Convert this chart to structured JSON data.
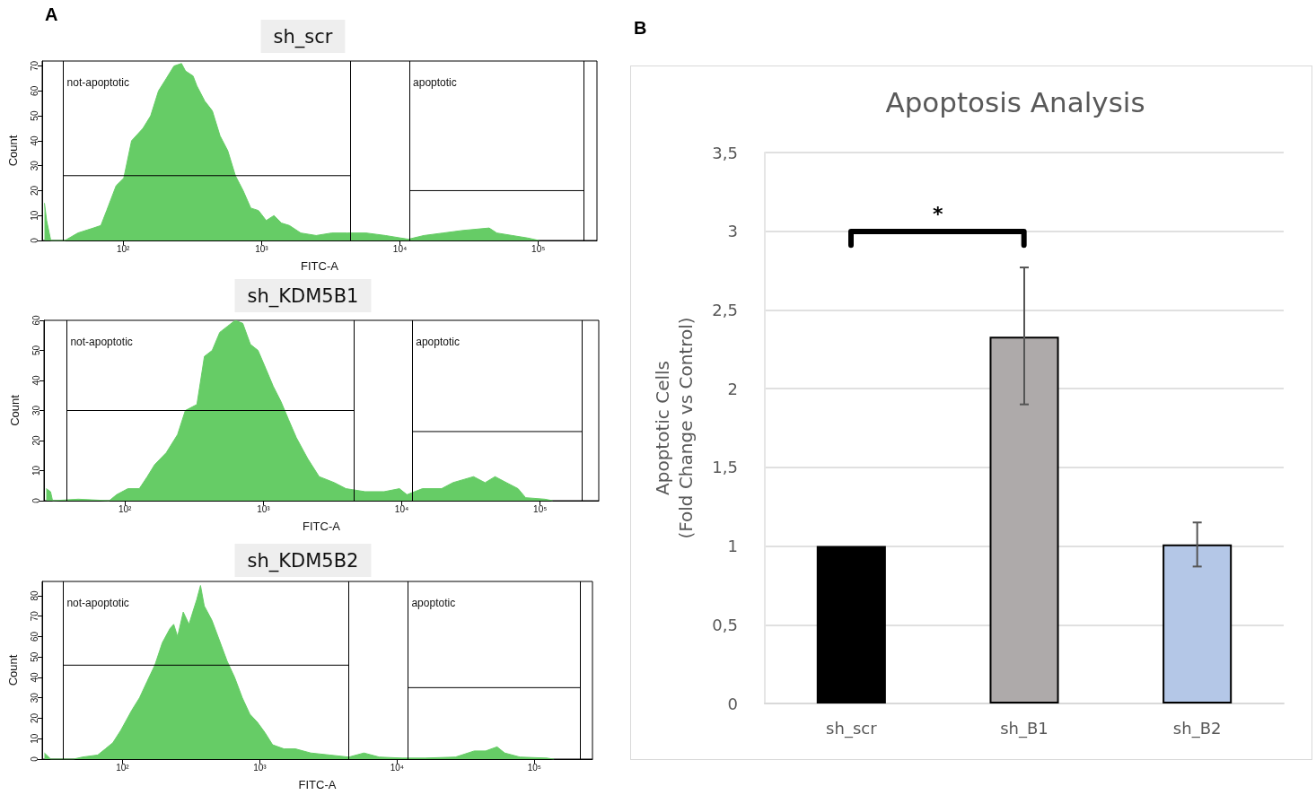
{
  "chart_data": [
    {
      "type": "area",
      "title": "sh_scr",
      "xlabel": "FITC-A",
      "ylabel": "Count",
      "log": "x",
      "marker": "none",
      "annotations": [
        "A"
      ],
      "xlim": [
        26,
        265000
      ],
      "xticks": [
        {
          "value": 100,
          "label": "10²"
        },
        {
          "value": 1000,
          "label": "10³"
        },
        {
          "value": 10000,
          "label": "10⁴"
        },
        {
          "value": 100000,
          "label": "10⁵"
        }
      ],
      "ylim": [
        0,
        72
      ],
      "yticks": [
        0,
        10,
        20,
        30,
        40,
        50,
        60,
        70
      ],
      "ref_lines": [
        {
          "axis": "x",
          "value": 37,
          "label": "not-apoptotic"
        },
        {
          "axis": "x",
          "value": 4400
        },
        {
          "axis": "x",
          "value": 11700,
          "label": "apoptotic"
        },
        {
          "axis": "x",
          "value": 214000
        }
      ],
      "series": [
        {
          "color": "#66cc66",
          "x": [
            27,
            28,
            30,
            38,
            47,
            61,
            69,
            76,
            89,
            101,
            115,
            139,
            158,
            180,
            205,
            233,
            264,
            282,
            320,
            341,
            388,
            441,
            501,
            570,
            647,
            736,
            836,
            951,
            1080,
            1230,
            1390,
            1590,
            1920,
            2480,
            3210,
            4140,
            5700,
            7840,
            10100,
            11500,
            14900,
            20500,
            28200,
            44100,
            50100,
            64700,
            83600,
            101000
          ],
          "values": [
            15,
            8,
            0,
            0,
            3,
            5,
            6,
            12,
            22,
            25,
            40,
            45,
            50,
            60,
            65,
            70,
            71,
            68,
            66,
            62,
            56,
            52,
            42,
            36,
            26,
            20,
            13,
            12,
            8,
            10,
            7,
            6,
            3,
            2,
            3,
            3,
            3,
            2,
            1,
            0.5,
            2,
            3,
            4,
            5,
            3,
            2,
            1,
            0
          ]
        },
        {
          "type": "line",
          "color": "#000000",
          "x": [
            37,
            4400
          ],
          "values": [
            26,
            26
          ]
        },
        {
          "type": "line",
          "color": "#000000",
          "x": [
            11700,
            214000
          ],
          "values": [
            20,
            20
          ]
        }
      ]
    },
    {
      "type": "area",
      "title": "sh_KDM5B1",
      "xlabel": "FITC-A",
      "ylabel": "Count",
      "log": "x",
      "marker": "none",
      "xlim": [
        26,
        265000
      ],
      "xticks": [
        {
          "value": 100,
          "label": "10²"
        },
        {
          "value": 1000,
          "label": "10³"
        },
        {
          "value": 10000,
          "label": "10⁴"
        },
        {
          "value": 100000,
          "label": "10⁵"
        }
      ],
      "ylim": [
        0,
        60
      ],
      "yticks": [
        0,
        10,
        20,
        30,
        40,
        50,
        60
      ],
      "ref_lines": [
        {
          "axis": "x",
          "value": 38,
          "label": "not-apoptotic"
        },
        {
          "axis": "x",
          "value": 4500
        },
        {
          "axis": "x",
          "value": 11900,
          "label": "apoptotic"
        },
        {
          "axis": "x",
          "value": 200000
        }
      ],
      "series": [
        {
          "color": "#66cc66",
          "x": [
            27,
            29,
            30,
            46,
            77,
            87,
            105,
            127,
            145,
            164,
            199,
            240,
            273,
            331,
            375,
            427,
            484,
            550,
            625,
            710,
            806,
            915,
            1040,
            1180,
            1340,
            1520,
            1730,
            2090,
            2530,
            3260,
            3950,
            5430,
            7460,
            9620,
            10900,
            14100,
            19400,
            23400,
            33000,
            40000,
            47200,
            57100,
            69200,
            78500,
            108000,
            123000
          ],
          "values": [
            4,
            3,
            0,
            0.5,
            0,
            2,
            4,
            4,
            8,
            12,
            16,
            22,
            30,
            32,
            48,
            50,
            56,
            58,
            60,
            59,
            52,
            50,
            44,
            38,
            33,
            27,
            21,
            14,
            8,
            6,
            4,
            3,
            3,
            4,
            2,
            4,
            4,
            6,
            8,
            6,
            8,
            6,
            4,
            1,
            0.5,
            0
          ]
        },
        {
          "type": "line",
          "color": "#000000",
          "x": [
            38,
            4500
          ],
          "values": [
            30,
            30
          ]
        },
        {
          "type": "line",
          "color": "#000000",
          "x": [
            11900,
            200000
          ],
          "values": [
            23,
            23
          ]
        }
      ]
    },
    {
      "type": "area",
      "title": "sh_KDM5B2",
      "xlabel": "FITC-A",
      "ylabel": "Count",
      "log": "x",
      "marker": "none",
      "xlim": [
        26,
        265000
      ],
      "xticks": [
        {
          "value": 100,
          "label": "10²"
        },
        {
          "value": 1000,
          "label": "10³"
        },
        {
          "value": 10000,
          "label": "10⁴"
        },
        {
          "value": 100000,
          "label": "10⁵"
        }
      ],
      "ylim": [
        0,
        87
      ],
      "yticks": [
        0,
        10,
        20,
        30,
        40,
        50,
        60,
        70,
        80
      ],
      "ref_lines": [
        {
          "axis": "x",
          "value": 37,
          "label": "not-apoptotic"
        },
        {
          "axis": "x",
          "value": 4450
        },
        {
          "axis": "x",
          "value": 12000,
          "label": "apoptotic"
        },
        {
          "axis": "x",
          "value": 215000
        }
      ],
      "series": [
        {
          "color": "#66cc66",
          "x": [
            27,
            28,
            30,
            44,
            51,
            66,
            75,
            85,
            97,
            117,
            133,
            151,
            172,
            195,
            222,
            236,
            252,
            277,
            305,
            325,
            347,
            370,
            394,
            448,
            509,
            578,
            656,
            746,
            847,
            962,
            1090,
            1240,
            1500,
            1820,
            2350,
            3230,
            4450,
            5740,
            7410,
            10900,
            15900,
            26600,
            36500,
            44200,
            53500,
            60800,
            78500,
            123000,
            139000
          ],
          "values": [
            3,
            2,
            0,
            0,
            1,
            2,
            5,
            8,
            14,
            24,
            30,
            38,
            46,
            57,
            64,
            66,
            60,
            72,
            66,
            72,
            78,
            85,
            75,
            68,
            58,
            48,
            40,
            30,
            22,
            18,
            13,
            7,
            5,
            5,
            3,
            2,
            1,
            3,
            1,
            0.5,
            0.5,
            1,
            4,
            4,
            6,
            3,
            1,
            0.5,
            0
          ]
        },
        {
          "type": "line",
          "color": "#000000",
          "x": [
            37,
            4450
          ],
          "values": [
            46,
            46
          ]
        },
        {
          "type": "line",
          "color": "#000000",
          "x": [
            12000,
            215000
          ],
          "values": [
            35,
            35
          ]
        }
      ]
    },
    {
      "type": "bar",
      "title": "Apoptosis Analysis",
      "ylabel": "Apoptotic Cells\n(Fold Change vs Control)",
      "grid": "y",
      "annotations": [
        "B",
        "*"
      ],
      "categories": [
        "sh_scr",
        "sh_B1",
        "sh_B2"
      ],
      "values": [
        1.0,
        2.33,
        1.01
      ],
      "colors": [
        "#000000",
        "#aeaaaa",
        "#b4c7e7"
      ],
      "errors": [
        null,
        [
          1.9,
          2.77
        ],
        [
          0.87,
          1.15
        ]
      ],
      "ylim": [
        0,
        3.5
      ],
      "yticks": [
        0,
        {
          "value": 0.5,
          "label": "0,5"
        },
        1,
        {
          "value": 1.5,
          "label": "1,5"
        },
        2,
        {
          "value": 2.5,
          "label": "2,5"
        },
        3,
        {
          "value": 3.5,
          "label": "3,5"
        }
      ]
    }
  ]
}
